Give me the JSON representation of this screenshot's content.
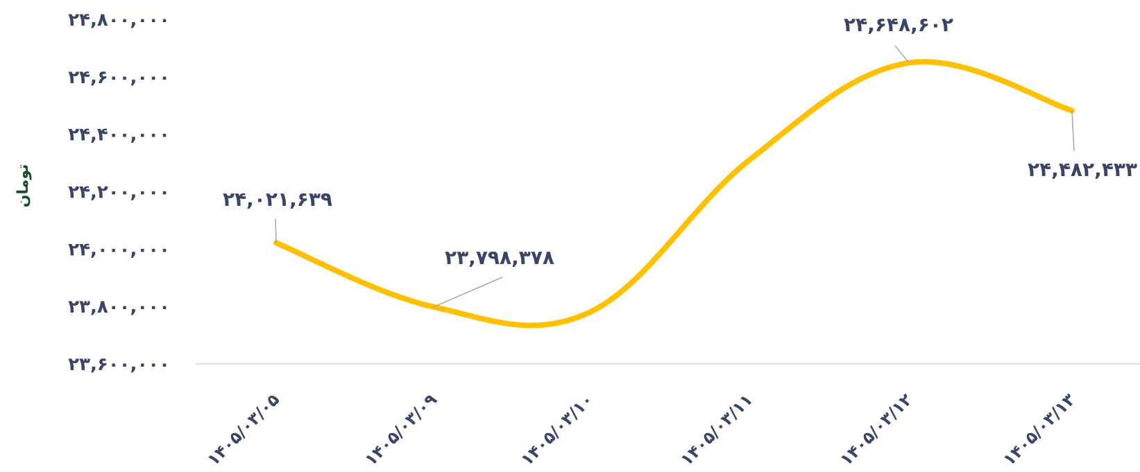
{
  "chart_data": {
    "type": "line",
    "title": "",
    "xlabel": "",
    "ylabel": "تومان",
    "categories": [
      "۱۴۰۵/۰۳/۰۵",
      "۱۴۰۵/۰۳/۰۹",
      "۱۴۰۵/۰۳/۱۰",
      "۱۴۰۵/۰۳/۱۱",
      "۱۴۰۵/۰۳/۱۲",
      "۱۴۰۵/۰۳/۱۳"
    ],
    "series": [
      {
        "values": [
          24021639,
          23798378,
          23780000,
          24310000,
          24648602,
          24482433
        ]
      }
    ],
    "data_labels": [
      {
        "index": 0,
        "text": "۲۴,۰۲۱,۶۳۹"
      },
      {
        "index": 1,
        "text": "۲۳,۷۹۸,۳۷۸"
      },
      {
        "index": 4,
        "text": "۲۴,۶۴۸,۶۰۲"
      },
      {
        "index": 5,
        "text": "۲۴,۴۸۲,۴۳۳"
      }
    ],
    "ylim": [
      23600000,
      24800000
    ],
    "yticks": [
      23600000,
      23800000,
      24000000,
      24200000,
      24400000,
      24600000,
      24800000
    ],
    "ytick_labels": [
      "۲۳,۶۰۰,۰۰۰",
      "۲۳,۸۰۰,۰۰۰",
      "۲۴,۰۰۰,۰۰۰",
      "۲۴,۲۰۰,۰۰۰",
      "۲۴,۴۰۰,۰۰۰",
      "۲۴,۶۰۰,۰۰۰",
      "۲۴,۸۰۰,۰۰۰"
    ],
    "smooth": true,
    "line_color": "#ffc000",
    "grid": false,
    "legend": "none"
  }
}
